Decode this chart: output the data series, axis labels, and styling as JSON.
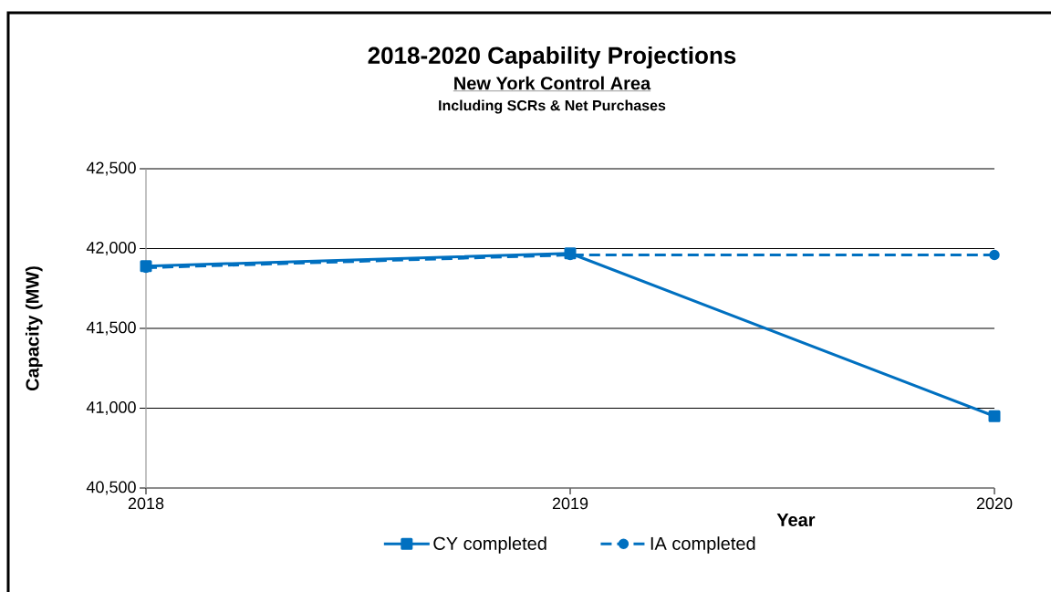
{
  "chart_data": {
    "type": "line",
    "title": "2018-2020 Capability Projections",
    "subtitle": "New York Control Area",
    "annotations": [
      "Including SCRs & Net Purchases"
    ],
    "xlabel": "Year",
    "ylabel": "Capacity (MW)",
    "x": [
      2018,
      2019,
      2020
    ],
    "xlim": [
      2018,
      2020
    ],
    "xticks": [
      2018,
      2019,
      2020
    ],
    "ylim": [
      40500,
      42500
    ],
    "yticks": [
      {
        "value": 40500,
        "label": "40,500"
      },
      {
        "value": 41000,
        "label": "41,000"
      },
      {
        "value": 41500,
        "label": "41,500"
      },
      {
        "value": 42000,
        "label": "42,000"
      },
      {
        "value": 42500,
        "label": "42,500"
      }
    ],
    "grid": "y",
    "legend": "bottom",
    "series": [
      {
        "name": "CY completed",
        "color": "#0070c0",
        "values": [
          41890,
          41970,
          40950
        ],
        "marker": "square",
        "line_style": "solid"
      },
      {
        "name": "IA completed",
        "color": "#0070c0",
        "values": [
          41880,
          41960,
          41960
        ],
        "marker": "circle",
        "line_style": "dashed"
      }
    ]
  }
}
